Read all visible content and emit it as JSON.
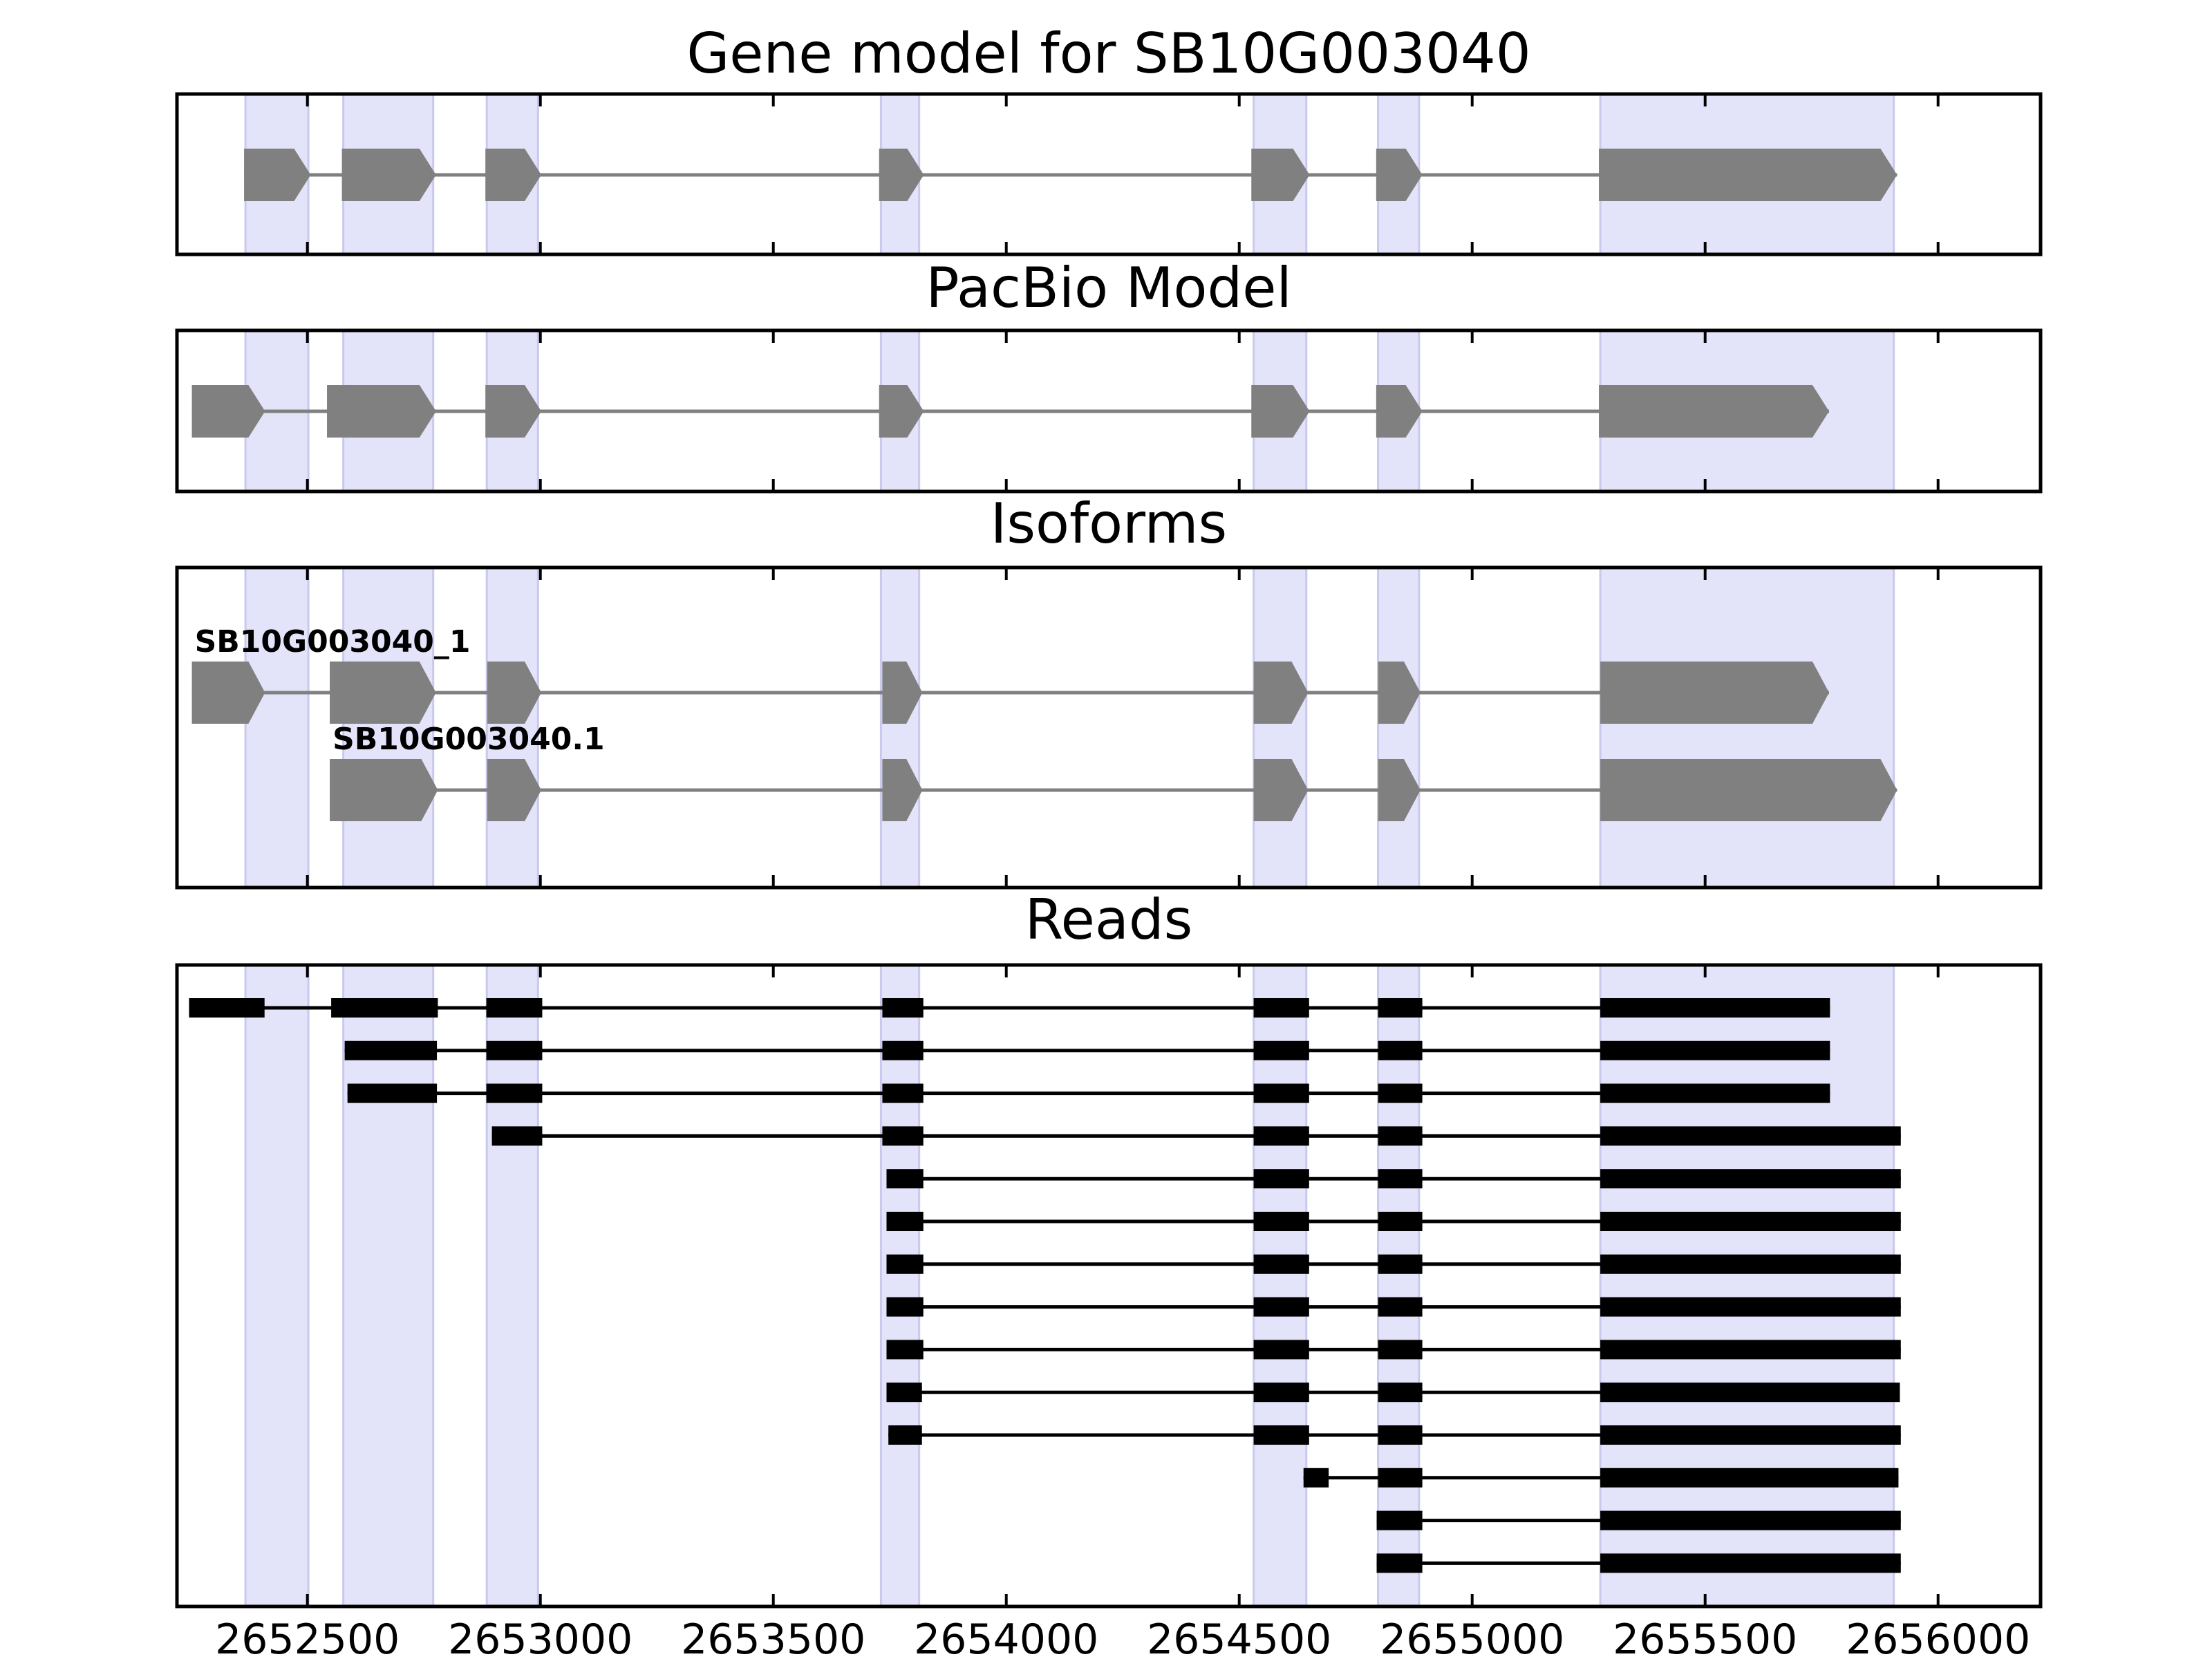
{
  "chart_data": {
    "type": "gene-structure",
    "x_range": [
      2652220,
      2656220
    ],
    "x_ticks": [
      2652500,
      2653000,
      2653500,
      2654000,
      2654500,
      2655000,
      2655500,
      2656000
    ],
    "x_tick_labels": [
      "2652500",
      "2653000",
      "2653500",
      "2654000",
      "2654500",
      "2655000",
      "2655500",
      "2656000"
    ],
    "colors": {
      "highlight": "#e3e3fa",
      "highlight_edge": "#c9c9ee",
      "exon_model": "#808080",
      "read": "#000000",
      "frame": "#000000"
    },
    "highlight_exons": [
      [
        2652367,
        2652502
      ],
      [
        2652577,
        2652770
      ],
      [
        2652885,
        2652995
      ],
      [
        2653731,
        2653813
      ],
      [
        2654531,
        2654644
      ],
      [
        2654798,
        2654886
      ],
      [
        2655275,
        2655905
      ]
    ],
    "panels": [
      {
        "title": "Gene model for SB10G003040",
        "kind": "model",
        "tracks": [
          {
            "label": "",
            "exons": [
              [
                2652364,
                2652507
              ],
              [
                2652574,
                2652776
              ],
              [
                2652882,
                2653002
              ],
              [
                2653727,
                2653823
              ],
              [
                2654526,
                2654651
              ],
              [
                2654794,
                2654893
              ],
              [
                2655272,
                2655912
              ]
            ]
          }
        ]
      },
      {
        "title": "PacBio Model",
        "kind": "model",
        "tracks": [
          {
            "label": "",
            "exons": [
              [
                2652252,
                2652409
              ],
              [
                2652542,
                2652776
              ],
              [
                2652574,
                2652776
              ],
              [
                2652882,
                2653002
              ],
              [
                2653727,
                2653823
              ],
              [
                2654526,
                2654651
              ],
              [
                2654794,
                2654893
              ],
              [
                2655272,
                2655766
              ]
            ]
          }
        ]
      },
      {
        "title": "Isoforms",
        "kind": "isoforms",
        "tracks": [
          {
            "label": "SB10G003040_1",
            "exons": [
              [
                2652252,
                2652409
              ],
              [
                2652548,
                2652776
              ],
              [
                2652580,
                2652770
              ],
              [
                2652886,
                2653002
              ],
              [
                2653734,
                2653820
              ],
              [
                2654531,
                2654648
              ],
              [
                2654798,
                2654889
              ],
              [
                2655275,
                2655766
              ]
            ]
          },
          {
            "label": "SB10G003040.1",
            "exons": [
              [
                2652548,
                2652780
              ],
              [
                2652580,
                2652770
              ],
              [
                2652886,
                2653002
              ],
              [
                2653734,
                2653820
              ],
              [
                2654531,
                2654648
              ],
              [
                2654798,
                2654889
              ],
              [
                2655275,
                2655912
              ]
            ]
          }
        ]
      },
      {
        "title": "Reads",
        "kind": "reads",
        "tracks": [
          {
            "exons": [
              [
                2652246,
                2652408
              ],
              [
                2652551,
                2652780
              ],
              [
                2652580,
                2652778
              ],
              [
                2652884,
                2653004
              ],
              [
                2653734,
                2653822
              ],
              [
                2654531,
                2654650
              ],
              [
                2654798,
                2654893
              ],
              [
                2655275,
                2655768
              ]
            ]
          },
          {
            "exons": [
              [
                2652580,
                2652778
              ],
              [
                2652884,
                2653004
              ],
              [
                2653734,
                2653822
              ],
              [
                2654531,
                2654650
              ],
              [
                2654798,
                2654893
              ],
              [
                2655275,
                2655768
              ]
            ]
          },
          {
            "exons": [
              [
                2652586,
                2652778
              ],
              [
                2652884,
                2653004
              ],
              [
                2653734,
                2653822
              ],
              [
                2654531,
                2654650
              ],
              [
                2654798,
                2654893
              ],
              [
                2655275,
                2655768
              ]
            ]
          },
          {
            "exons": [
              [
                2652896,
                2653004
              ],
              [
                2653734,
                2653822
              ],
              [
                2654531,
                2654650
              ],
              [
                2654798,
                2654893
              ],
              [
                2655275,
                2655920
              ]
            ]
          },
          {
            "exons": [
              [
                2653743,
                2653822
              ],
              [
                2654531,
                2654650
              ],
              [
                2654798,
                2654893
              ],
              [
                2655275,
                2655920
              ]
            ]
          },
          {
            "exons": [
              [
                2653743,
                2653822
              ],
              [
                2654531,
                2654650
              ],
              [
                2654798,
                2654893
              ],
              [
                2655275,
                2655920
              ]
            ]
          },
          {
            "exons": [
              [
                2653743,
                2653822
              ],
              [
                2654531,
                2654650
              ],
              [
                2654798,
                2654893
              ],
              [
                2655275,
                2655920
              ]
            ]
          },
          {
            "exons": [
              [
                2653743,
                2653822
              ],
              [
                2654531,
                2654650
              ],
              [
                2654798,
                2654893
              ],
              [
                2655275,
                2655920
              ]
            ]
          },
          {
            "exons": [
              [
                2653743,
                2653822
              ],
              [
                2654531,
                2654650
              ],
              [
                2654798,
                2654893
              ],
              [
                2655275,
                2655920
              ]
            ]
          },
          {
            "exons": [
              [
                2653743,
                2653819
              ],
              [
                2654531,
                2654650
              ],
              [
                2654798,
                2654893
              ],
              [
                2655275,
                2655918
              ]
            ]
          },
          {
            "exons": [
              [
                2653747,
                2653819
              ],
              [
                2654531,
                2654650
              ],
              [
                2654798,
                2654893
              ],
              [
                2655275,
                2655920
              ]
            ]
          },
          {
            "exons": [
              [
                2654638,
                2654692
              ],
              [
                2654798,
                2654893
              ],
              [
                2655275,
                2655915
              ]
            ]
          },
          {
            "exons": [
              [
                2654795,
                2654893
              ],
              [
                2655275,
                2655920
              ]
            ]
          },
          {
            "exons": [
              [
                2654795,
                2654893
              ],
              [
                2655275,
                2655920
              ]
            ]
          }
        ]
      }
    ]
  }
}
